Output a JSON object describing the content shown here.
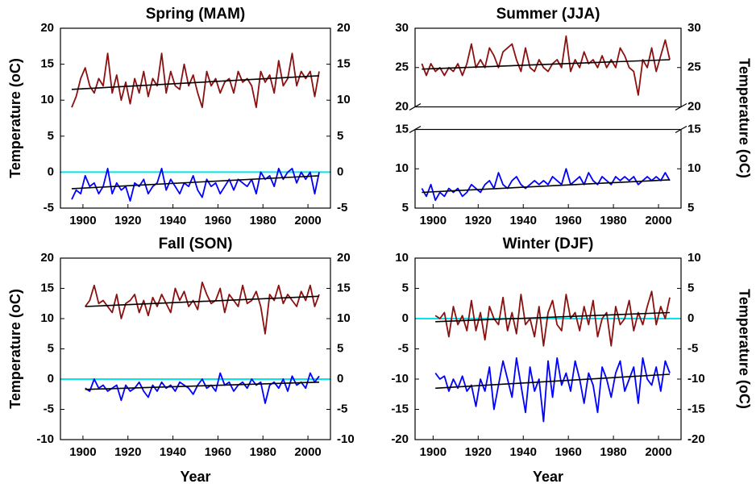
{
  "chart_data": [
    {
      "type": "line",
      "title": "Spring (MAM)",
      "ylabel": "Temperature (oC)",
      "ylabel_side": "left",
      "x": [
        1895,
        1897,
        1899,
        1901,
        1903,
        1905,
        1907,
        1909,
        1911,
        1913,
        1915,
        1917,
        1919,
        1921,
        1923,
        1925,
        1927,
        1929,
        1931,
        1933,
        1935,
        1937,
        1939,
        1941,
        1943,
        1945,
        1947,
        1949,
        1951,
        1953,
        1955,
        1957,
        1959,
        1961,
        1963,
        1965,
        1967,
        1969,
        1971,
        1973,
        1975,
        1977,
        1979,
        1981,
        1983,
        1985,
        1987,
        1989,
        1991,
        1993,
        1995,
        1997,
        1999,
        2001,
        2003,
        2005
      ],
      "xlim": [
        1890,
        2010
      ],
      "xticks": [
        1900,
        1920,
        1940,
        1960,
        1980,
        2000
      ],
      "ylim": [
        -5,
        20
      ],
      "yticks": [
        -5,
        0,
        5,
        10,
        15,
        20
      ],
      "series": [
        {
          "color": "#8b1010",
          "values": [
            9,
            10.5,
            13,
            14.5,
            12,
            11,
            13,
            12,
            16.5,
            11,
            13.5,
            10,
            12.5,
            9.5,
            13,
            11,
            14,
            10.5,
            13,
            12,
            16.5,
            11,
            14,
            12,
            11.5,
            15,
            12,
            13.5,
            11,
            9,
            14,
            12,
            13,
            11,
            12.5,
            13,
            11,
            14,
            12.5,
            13,
            12,
            9,
            14,
            12.5,
            13.5,
            11,
            15.5,
            12,
            13,
            16.5,
            12,
            14,
            13,
            14,
            10.5,
            14
          ]
        },
        {
          "color": "#0000ff",
          "values": [
            -3.8,
            -2.5,
            -3,
            -0.5,
            -2,
            -1.5,
            -3,
            -2,
            0.5,
            -3,
            -1.5,
            -2.5,
            -2,
            -4,
            -1.5,
            -2,
            -1,
            -3,
            -2,
            -1.5,
            0.5,
            -2.5,
            -1,
            -2,
            -3,
            -1.5,
            -2,
            -0.5,
            -2.5,
            -3.5,
            -1,
            -2,
            -1.5,
            -3,
            -2,
            -1,
            -2.5,
            -1,
            -1.5,
            -2,
            -1,
            -3,
            0,
            -1,
            -0.5,
            -2,
            0.5,
            -1,
            0,
            0.5,
            -1.5,
            0,
            -1,
            0,
            -3,
            0
          ]
        }
      ],
      "trends": [
        {
          "color": "#000000",
          "x": [
            1895,
            2005
          ],
          "values": [
            11.5,
            13.4
          ]
        },
        {
          "color": "#000000",
          "x": [
            1895,
            2005
          ],
          "values": [
            -2.3,
            -0.5
          ]
        }
      ],
      "hlines": [
        {
          "value": 0,
          "color": "#00e5ee"
        }
      ]
    },
    {
      "type": "line",
      "title": "Summer (JJA)",
      "ylabel": "Temperature (oC)",
      "ylabel_side": "right",
      "x": [
        1895,
        1897,
        1899,
        1901,
        1903,
        1905,
        1907,
        1909,
        1911,
        1913,
        1915,
        1917,
        1919,
        1921,
        1923,
        1925,
        1927,
        1929,
        1931,
        1933,
        1935,
        1937,
        1939,
        1941,
        1943,
        1945,
        1947,
        1949,
        1951,
        1953,
        1955,
        1957,
        1959,
        1961,
        1963,
        1965,
        1967,
        1969,
        1971,
        1973,
        1975,
        1977,
        1979,
        1981,
        1983,
        1985,
        1987,
        1989,
        1991,
        1993,
        1995,
        1997,
        1999,
        2001,
        2003,
        2005
      ],
      "xlim": [
        1892,
        2010
      ],
      "xticks": [
        1900,
        1920,
        1940,
        1960,
        1980,
        2000
      ],
      "ylim": [
        5,
        30
      ],
      "ybreak": [
        15,
        20
      ],
      "yticks": [
        5,
        10,
        15,
        20,
        25,
        30
      ],
      "series": [
        {
          "color": "#8b1010",
          "values": [
            25.5,
            24,
            25.5,
            24.5,
            25,
            24,
            25,
            24.5,
            25.5,
            24,
            25.5,
            28,
            25,
            26,
            25,
            27.5,
            26.5,
            25,
            27,
            27.5,
            28,
            26,
            24.5,
            27.5,
            25,
            24.5,
            26,
            25,
            24.5,
            25.5,
            26,
            25,
            29,
            24.5,
            26,
            25,
            27,
            25.5,
            26,
            25,
            26.5,
            25,
            26,
            25,
            27.5,
            26.5,
            25,
            24.5,
            21.5,
            26,
            25,
            27.5,
            24.5,
            26.5,
            28.5,
            26
          ]
        },
        {
          "color": "#0000ff",
          "values": [
            7.5,
            6.5,
            8,
            6,
            7,
            6.5,
            7.5,
            7,
            7.5,
            6.5,
            7,
            8,
            7.5,
            7,
            8,
            8.5,
            7.5,
            9.5,
            8,
            7.5,
            8.5,
            9,
            8,
            7.5,
            8,
            8.5,
            8,
            8.5,
            8,
            9,
            8.5,
            8,
            10,
            8,
            8.5,
            9,
            8,
            9.5,
            8.5,
            8,
            9,
            8.5,
            8,
            9,
            8.5,
            9,
            8.5,
            9,
            8,
            8.5,
            9,
            8.5,
            9,
            8.5,
            9.5,
            8.5
          ]
        }
      ],
      "trends": [
        {
          "color": "#000000",
          "x": [
            1895,
            2005
          ],
          "values": [
            24.8,
            26
          ]
        },
        {
          "color": "#000000",
          "x": [
            1895,
            2005
          ],
          "values": [
            7,
            8.6
          ]
        }
      ],
      "hlines": []
    },
    {
      "type": "line",
      "title": "Fall (SON)",
      "ylabel": "Temperature (oC)",
      "ylabel_side": "left",
      "xlabel": "Year",
      "x": [
        1901,
        1903,
        1905,
        1907,
        1909,
        1911,
        1913,
        1915,
        1917,
        1919,
        1921,
        1923,
        1925,
        1927,
        1929,
        1931,
        1933,
        1935,
        1937,
        1939,
        1941,
        1943,
        1945,
        1947,
        1949,
        1951,
        1953,
        1955,
        1957,
        1959,
        1961,
        1963,
        1965,
        1967,
        1969,
        1971,
        1973,
        1975,
        1977,
        1979,
        1981,
        1983,
        1985,
        1987,
        1989,
        1991,
        1993,
        1995,
        1997,
        1999,
        2001,
        2003,
        2005
      ],
      "xlim": [
        1890,
        2010
      ],
      "xticks": [
        1900,
        1920,
        1940,
        1960,
        1980,
        2000
      ],
      "ylim": [
        -10,
        20
      ],
      "yticks": [
        -10,
        -5,
        0,
        5,
        10,
        15,
        20
      ],
      "series": [
        {
          "color": "#8b1010",
          "values": [
            12,
            13,
            15.5,
            12.5,
            13,
            12,
            11,
            14,
            10,
            12.5,
            13,
            14,
            11,
            13,
            10.5,
            13.5,
            12,
            14,
            12.5,
            11,
            15,
            13,
            14.5,
            12,
            13,
            11.5,
            16,
            14,
            12.5,
            13,
            15,
            11,
            14,
            13,
            12,
            15.5,
            12.5,
            13,
            14.5,
            12,
            7.5,
            14,
            13,
            15.5,
            12.5,
            14,
            13,
            12,
            14.5,
            13,
            15.5,
            12,
            14
          ]
        },
        {
          "color": "#0000ff",
          "values": [
            -1.5,
            -2,
            0,
            -1.5,
            -1,
            -2,
            -1.5,
            -1,
            -3.5,
            -1,
            -2,
            -1.5,
            -0.5,
            -2,
            -3,
            -1,
            -2,
            -0.5,
            -1.5,
            -1,
            -2,
            -0.5,
            -1,
            -1.5,
            -2.5,
            -1,
            0,
            -1.5,
            -1,
            -2,
            1,
            -1,
            -0.5,
            -2,
            -1,
            -0.5,
            -1.5,
            0,
            -1,
            -0.5,
            -4,
            -1,
            -0.5,
            -1.5,
            0,
            -2,
            0.5,
            -1,
            -0.5,
            -1.5,
            1,
            -0.5,
            0.5
          ]
        }
      ],
      "trends": [
        {
          "color": "#000000",
          "x": [
            1901,
            2005
          ],
          "values": [
            12,
            13.7
          ]
        },
        {
          "color": "#000000",
          "x": [
            1901,
            2005
          ],
          "values": [
            -1.7,
            -0.5
          ]
        }
      ],
      "hlines": [
        {
          "value": 0,
          "color": "#00e5ee"
        }
      ]
    },
    {
      "type": "line",
      "title": "Winter (DJF)",
      "ylabel": "Temperature (oC)",
      "ylabel_side": "right",
      "xlabel": "Year",
      "x": [
        1901,
        1903,
        1905,
        1907,
        1909,
        1911,
        1913,
        1915,
        1917,
        1919,
        1921,
        1923,
        1925,
        1927,
        1929,
        1931,
        1933,
        1935,
        1937,
        1939,
        1941,
        1943,
        1945,
        1947,
        1949,
        1951,
        1953,
        1955,
        1957,
        1959,
        1961,
        1963,
        1965,
        1967,
        1969,
        1971,
        1973,
        1975,
        1977,
        1979,
        1981,
        1983,
        1985,
        1987,
        1989,
        1991,
        1993,
        1995,
        1997,
        1999,
        2001,
        2003,
        2005
      ],
      "xlim": [
        1892,
        2010
      ],
      "xticks": [
        1900,
        1920,
        1940,
        1960,
        1980,
        2000
      ],
      "ylim": [
        -20,
        10
      ],
      "yticks": [
        -20,
        -15,
        -10,
        -5,
        0,
        5,
        10
      ],
      "series": [
        {
          "color": "#8b1010",
          "values": [
            0.5,
            0,
            1,
            -3,
            2,
            -1,
            0.5,
            -2,
            3,
            -2,
            1,
            -3.5,
            2,
            0,
            -1,
            3.5,
            -2,
            1,
            -2.5,
            4,
            -1,
            0,
            -3,
            2,
            -4.5,
            1,
            3,
            -1,
            -2,
            4,
            0,
            1,
            -2,
            2,
            -1,
            3,
            -3,
            0,
            1,
            -4.5,
            2,
            -1,
            0,
            3,
            -2,
            1,
            -1,
            2,
            4.5,
            -1,
            2,
            0,
            3.5
          ]
        },
        {
          "color": "#0000ff",
          "values": [
            -9,
            -10,
            -9.5,
            -12,
            -10,
            -11.5,
            -9.5,
            -12,
            -11,
            -14.5,
            -10,
            -12,
            -8,
            -15,
            -11,
            -7,
            -10,
            -13,
            -6.5,
            -11,
            -15.5,
            -8,
            -12,
            -10,
            -17,
            -7,
            -13,
            -6.5,
            -11,
            -9,
            -12,
            -7,
            -10,
            -14,
            -9,
            -11,
            -15.5,
            -8,
            -10,
            -13,
            -9,
            -7,
            -12,
            -10,
            -8,
            -14,
            -6.5,
            -10,
            -11,
            -8,
            -12,
            -7,
            -9
          ]
        }
      ],
      "trends": [
        {
          "color": "#000000",
          "x": [
            1901,
            2005
          ],
          "values": [
            -0.5,
            1
          ]
        },
        {
          "color": "#000000",
          "x": [
            1901,
            2005
          ],
          "values": [
            -11.5,
            -9.2
          ]
        }
      ],
      "hlines": [
        {
          "value": 0,
          "color": "#00e5ee"
        }
      ]
    }
  ]
}
